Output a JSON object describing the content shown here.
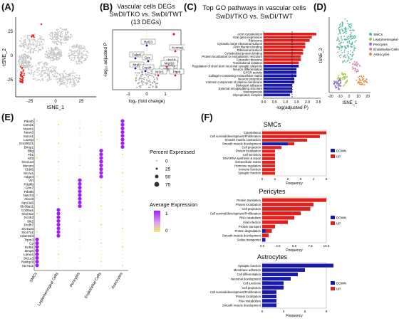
{
  "panels": {
    "A": "(A)",
    "B": "(B)",
    "C": "(C)",
    "D": "(D)",
    "E": "(E)",
    "F": "(F)"
  },
  "A": {
    "xlabel": "tSNE_1",
    "ylabel": "tSNE_2",
    "xticks": [
      "-25",
      "0",
      "25"
    ],
    "yticks": [
      "25",
      "0",
      "-25"
    ]
  },
  "B": {
    "title1": "Vascular cells DEGs",
    "title2": "SwDI/TKO vs. SwDI/TWT",
    "title3": "(13 DEGs)",
    "xlabel": "log₂ (fold change)",
    "ylabel": "-log₁₀ adjusted P",
    "xticks": [
      "-1",
      "0",
      "1"
    ],
    "genes": [
      "Rpl23",
      "Kcnma1",
      "Fabp5",
      "Gpx",
      "Mrpl1",
      "Copd4",
      "Uso1b",
      "Atm4",
      "Actb1",
      "Ptprb",
      "Nr3c1",
      "Mrpl18"
    ]
  },
  "C": {
    "title1": "Top GO pathways in vascular cells",
    "title2": "SwDI/TKO vs. SwDI/TWT",
    "xlabel": "-log(adjusted P)",
    "xticks": [
      "0.0",
      "0.5",
      "1.0",
      "1.5",
      "2.0",
      "2.5"
    ],
    "chart_data": {
      "type": "bar",
      "categories": [
        "Actin cytoskeleton",
        "Viral gene expression",
        "Ribosome",
        "Cytosolic large ribosomal subunit",
        "Actin filament binding",
        "Ribosomal subunit",
        "Cytoskeletal protein binding",
        "Protein localization to endoplasmic reticulum",
        "Cytosolic ribosome",
        "Translational initiation",
        "Regulation of short term neuronal synaptic plasticity",
        "Neuron differentiation",
        "GPCR activity",
        "Collagen-containing extracellular matrix",
        "Neuron projection",
        "Intrinsic component of plasma membrane",
        "Biological adhesion",
        "External encapsulating structure",
        "Neurogenesis",
        "Glycoprotein complex"
      ],
      "values": [
        2.4,
        2.2,
        2.1,
        1.9,
        1.9,
        1.8,
        1.8,
        1.7,
        1.7,
        1.6,
        1.6,
        1.5,
        1.5,
        1.5,
        1.4,
        1.4,
        1.3,
        1.3,
        1.3,
        1.2
      ],
      "direction": [
        "up",
        "up",
        "up",
        "up",
        "up",
        "up",
        "up",
        "up",
        "up",
        "up",
        "down",
        "down",
        "down",
        "down",
        "down",
        "down",
        "down",
        "down",
        "down",
        "down"
      ],
      "xlim": [
        0,
        2.6
      ]
    }
  },
  "D": {
    "xlabel": "tSNE_1",
    "ylabel": "tSNE_2",
    "xticks": [
      "-20",
      "-10",
      "0",
      "10",
      "20"
    ],
    "legend": [
      {
        "label": "SMCs",
        "color": "#56b4a0"
      },
      {
        "label": "Leptomeningeal Cells",
        "color": "#9bc53d"
      },
      {
        "label": "Pericytes",
        "color": "#8e6cc4"
      },
      {
        "label": "Endothelial Cells",
        "color": "#d27fb0"
      },
      {
        "label": "Astrocytes",
        "color": "#e0893a"
      }
    ]
  },
  "E": {
    "genes": [
      "Pde4b",
      "Csmd1",
      "Ncam1",
      "Nuan2",
      "Sorcs1",
      "Lsamp",
      "Gm29521",
      "Brinp1",
      "Bbg",
      "Flt1",
      "Klf2",
      "Slco1a4",
      "Mecom",
      "Cldn5",
      "Slc2a1",
      "Adgrl4",
      "Vtn",
      "Pdgfrb",
      "Grm7",
      "Pde8b",
      "Notch3",
      "Abcc9",
      "Atp13a5",
      "Slc38a11",
      "Col25a1",
      "Slc23a2",
      "Kcnb2",
      "Slit2",
      "Pcdh7",
      "Slc4a10",
      "Slc47a1",
      "Adamtsl3",
      "Trpm3",
      "Cp",
      "Enf61",
      "Bmp6",
      "Lama1",
      "Slc1a3",
      "Ranbp3l",
      "Slc7a11"
    ],
    "celltypes": [
      "SMCs",
      "Leptomeningeal Cells",
      "Pericytes",
      "Endothelial Cells",
      "Astrocytes"
    ],
    "legend_size_title": "Percent Expressed",
    "size_labels": [
      "0",
      "25",
      "50",
      "75"
    ],
    "legend_color_title": "Average Expression",
    "color_labels": [
      "1",
      "0"
    ]
  },
  "F": {
    "smc": {
      "title": "SMCs",
      "xticks": [
        "0",
        "1",
        "2",
        "3",
        "4",
        "5"
      ],
      "xlabel": "Frequency",
      "chart_data": {
        "type": "bar",
        "categories": [
          "Cytoskeleton",
          "Cell survival/development/Proliferation",
          "Smooth muscle contraction",
          "Smooth muscle development",
          "Cell projection",
          "Protein localization",
          "Cell secretion",
          "DNA/RNA synthesis & repair",
          "Extracellular matrix",
          "Hormone regulation",
          "Immune function",
          "Synaptic function"
        ],
        "series": [
          {
            "name": "DOWN",
            "values": [
              0,
              0,
              0,
              2,
              0,
              0,
              0,
              0,
              0,
              0,
              0,
              0
            ]
          },
          {
            "name": "UP",
            "values": [
              5,
              4.5,
              3.5,
              2.5,
              1.5,
              1,
              1,
              1,
              1,
              1,
              1,
              1
            ]
          }
        ]
      }
    },
    "pericytes": {
      "title": "Pericytes",
      "xticks": [
        "0.0",
        "2.5",
        "5.0",
        "7.5",
        "10.0"
      ],
      "xlabel": "Frequency",
      "chart_data": {
        "type": "bar",
        "categories": [
          "Protein translation",
          "Protein localization",
          "Cell projection",
          "Cell survival/development/Proliferation",
          "RNA catabolism",
          "Viral infection",
          "Protein transport",
          "Protein degradation",
          "Smooth muscle development",
          "Solute transporter"
        ],
        "series": [
          {
            "name": "DOWN",
            "values": [
              0,
              0,
              0,
              0,
              0,
              0,
              0,
              0.5,
              0,
              0.5
            ]
          },
          {
            "name": "UP",
            "values": [
              10,
              8,
              7.5,
              6,
              5,
              4,
              2,
              1.5,
              1,
              0.5
            ]
          }
        ]
      }
    },
    "astro": {
      "title": "Astrocytes",
      "xticks": [
        "0",
        "3",
        "6",
        "9"
      ],
      "xlabel": "Frequency",
      "chart_data": {
        "type": "bar",
        "categories": [
          "Synaptic function",
          "Membrane adhesion",
          "Cell differentiation",
          "Neuronal development",
          "Cell junctions",
          "Cell projection",
          "Cell survival/development/Proliferation",
          "Protein localization",
          "RNA metabolism",
          "Smooth muscle development"
        ],
        "series": [
          {
            "name": "DOWN",
            "values": [
              10,
              6,
              5,
              4,
              3,
              3,
              2,
              2,
              2,
              2
            ]
          },
          {
            "name": "UP",
            "values": [
              0,
              0,
              0,
              0,
              1,
              0,
              1,
              0,
              0,
              0
            ]
          }
        ]
      }
    },
    "legend": {
      "down": "DOWN",
      "up": "UP",
      "down_color": "#1a1aa8",
      "up_color": "#e0201c"
    }
  }
}
